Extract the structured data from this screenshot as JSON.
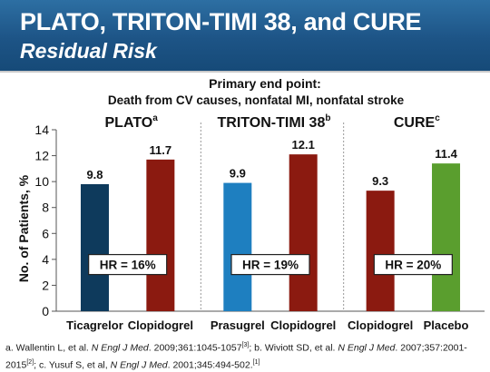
{
  "slide": {
    "title": "PLATO, TRITON-TIMI 38, and CURE",
    "subtitle": "Residual Risk"
  },
  "chart_data": {
    "type": "bar",
    "title_line1": "Primary end point:",
    "title_line2": "Death from CV causes, nonfatal MI, nonfatal stroke",
    "ylabel": "No. of Patients, %",
    "ylim": [
      0,
      14
    ],
    "yticks": [
      0,
      2,
      4,
      6,
      8,
      10,
      12,
      14
    ],
    "grid": false,
    "groups": [
      {
        "name": "PLATO",
        "superscript": "a",
        "hr_label": "HR = 16%",
        "bars": [
          {
            "category": "Ticagrelor",
            "value": 9.8,
            "label": "9.8",
            "color": "#0e3a5c"
          },
          {
            "category": "Clopidogrel",
            "value": 11.7,
            "label": "11.7",
            "color": "#8b1a10"
          }
        ]
      },
      {
        "name": "TRITON-TIMI 38",
        "superscript": "b",
        "hr_label": "HR = 19%",
        "bars": [
          {
            "category": "Prasugrel",
            "value": 9.9,
            "label": "9.9",
            "color": "#1e7fc0"
          },
          {
            "category": "Clopidogrel",
            "value": 12.1,
            "label": "12.1",
            "color": "#8b1a10"
          }
        ]
      },
      {
        "name": "CURE",
        "superscript": "c",
        "hr_label": "HR = 20%",
        "bars": [
          {
            "category": "Clopidogrel",
            "value": 9.3,
            "label": "9.3",
            "color": "#8b1a10"
          },
          {
            "category": "Placebo",
            "value": 11.4,
            "label": "11.4",
            "color": "#5a9e2e"
          }
        ]
      }
    ]
  },
  "footnote": {
    "a_prefix": "a. Wallentin L, et al. ",
    "a_journal": "N Engl J Med",
    "a_rest": ". 2009;361:1045-1057",
    "a_ref": "[3]",
    "b_prefix": "; b. Wiviott SD, et al. ",
    "b_journal": "N Engl J Med",
    "b_rest": ". 2007;357:2001-2015",
    "b_ref": "[2]",
    "c_prefix": "; c. Yusuf S, et al, ",
    "c_journal": "N Engl J Med",
    "c_rest": ". 2001;345:494-502.",
    "c_ref": "[1]"
  }
}
